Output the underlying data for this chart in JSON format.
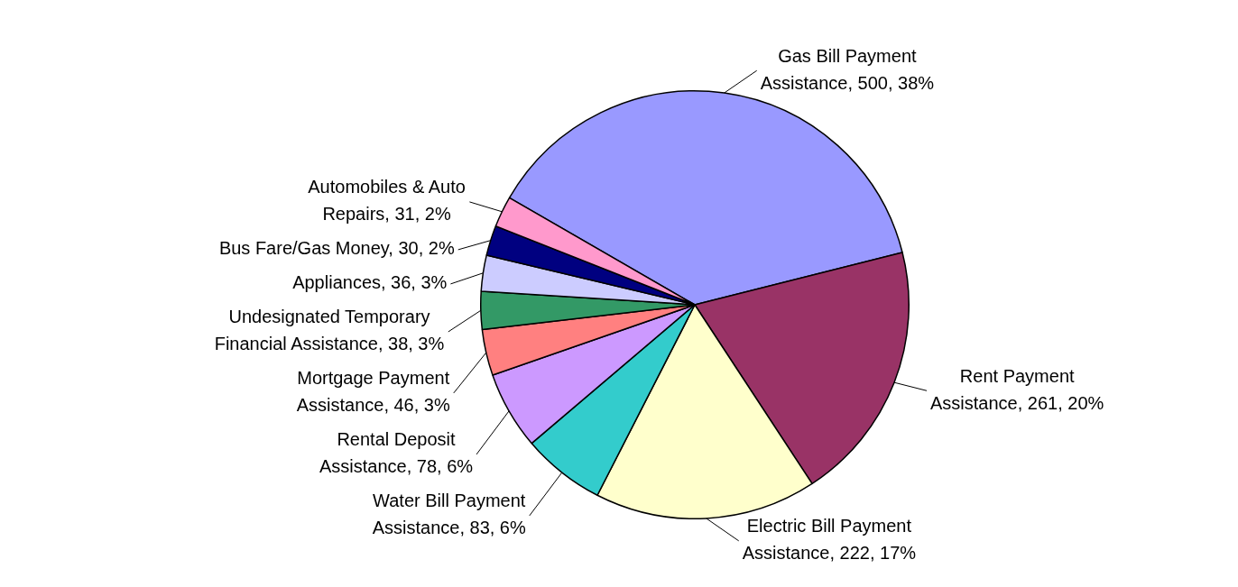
{
  "chart_data": {
    "type": "pie",
    "categories": [
      "Gas Bill Payment Assistance",
      "Rent Payment Assistance",
      "Electric Bill Payment Assistance",
      "Water Bill Payment Assistance",
      "Rental Deposit Assistance",
      "Mortgage Payment Assistance",
      "Undesignated Temporary Financial Assistance",
      "Appliances",
      "Bus Fare/Gas Money",
      "Automobiles & Auto Repairs"
    ],
    "values": [
      500,
      261,
      222,
      83,
      78,
      46,
      38,
      36,
      30,
      31
    ],
    "value_labels": [
      "500, 38%",
      "261, 20%",
      "222, 17%",
      "83, 6%",
      "78, 6%",
      "46, 3%",
      "38, 3%",
      "36, 3%",
      "30, 2%",
      "31, 2%"
    ],
    "colors": [
      "#9999ff",
      "#993366",
      "#ffffcc",
      "#33cccc",
      "#cc99ff",
      "#ff8080",
      "#339966",
      "#ccccff",
      "#000080",
      "#ff99cc"
    ],
    "legend": false
  }
}
